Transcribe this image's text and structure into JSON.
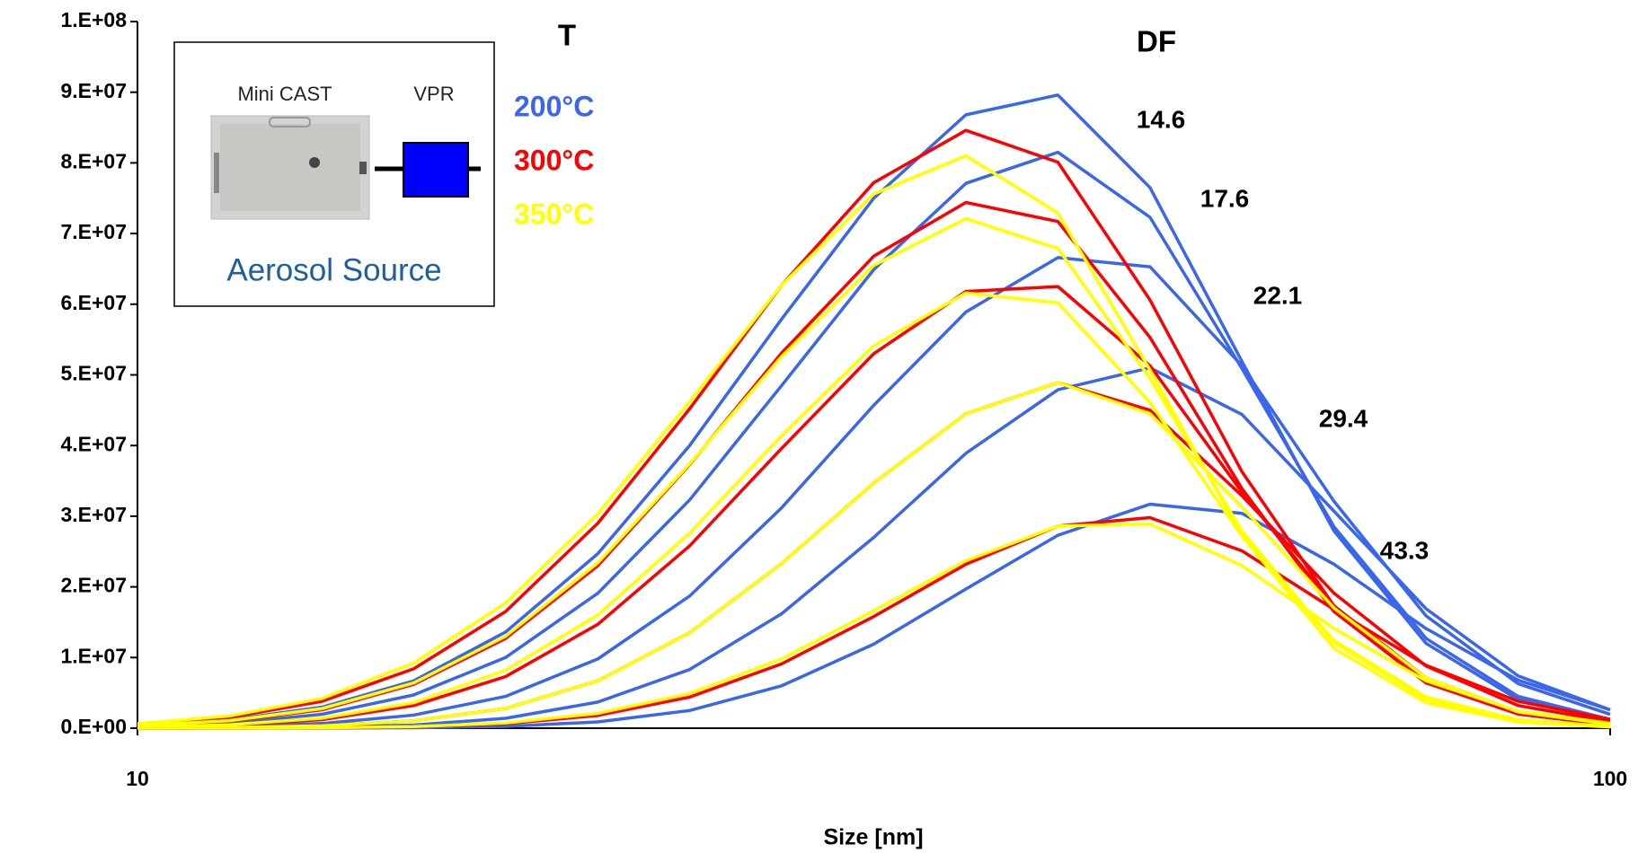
{
  "chart_data": {
    "type": "line",
    "x_label": "Size [nm]",
    "xscale": "log",
    "xlim": [
      10,
      100
    ],
    "xticks": [
      10,
      100
    ],
    "ylim": [
      0,
      100000000
    ],
    "yticks": [
      {
        "value": 0,
        "label": "0.E+00"
      },
      {
        "value": 10000000,
        "label": "1.E+07"
      },
      {
        "value": 20000000,
        "label": "2.E+07"
      },
      {
        "value": 30000000,
        "label": "3.E+07"
      },
      {
        "value": 40000000,
        "label": "4.E+07"
      },
      {
        "value": 50000000,
        "label": "5.E+07"
      },
      {
        "value": 60000000,
        "label": "6.E+07"
      },
      {
        "value": 70000000,
        "label": "7.E+07"
      },
      {
        "value": 80000000,
        "label": "8.E+07"
      },
      {
        "value": 90000000,
        "label": "9.E+07"
      },
      {
        "value": 100000000,
        "label": "1.E+08"
      }
    ],
    "grid": false,
    "legend_title": "T",
    "df_title": "DF",
    "df_labels": [
      14.6,
      17.6,
      22.1,
      29.4,
      43.3
    ],
    "inset": {
      "labels": [
        "Mini CAST",
        "VPR"
      ],
      "caption": "Aerosol Source"
    },
    "x": [
      10,
      11.55,
      13.34,
      15.4,
      17.78,
      20.54,
      23.71,
      27.38,
      31.62,
      36.52,
      42.17,
      48.7,
      56.23,
      64.94,
      74.99,
      86.6,
      100
    ],
    "series": [
      {
        "name": "200°C",
        "color": "#3a66ee",
        "values": [
          410000.0,
          1170000.0,
          2970000.0,
          6700000.0,
          13600000.0,
          24700000.0,
          40000000.0,
          57900000.0,
          75000000.0,
          86800000.0,
          89600000.0,
          76500000.0,
          51900000.0,
          27900000.0,
          12000000.0,
          4050000.0,
          1090000.0
        ]
      },
      {
        "name": "200°C",
        "color": "#3a66ee",
        "values": [
          240000.0,
          730000.0,
          1960000.0,
          4700000.0,
          10000000.0,
          19100000.0,
          32300000.0,
          48500000.0,
          64900000.0,
          77100000.0,
          81500000.0,
          72300000.0,
          50900000.0,
          28500000.0,
          12700000.0,
          4500000.0,
          1250000.0
        ]
      },
      {
        "name": "200°C",
        "color": "#3a66ee",
        "values": [
          57000.0,
          210000.0,
          660000.0,
          1850000.0,
          4500000.0,
          9800000.0,
          18700000.0,
          31200000.0,
          45700000.0,
          58900000.0,
          66600000.0,
          65300000.0,
          51300000.0,
          32100000.0,
          15900000.0,
          6300000.0,
          1960000.0
        ]
      },
      {
        "name": "200°C",
        "color": "#3a66ee",
        "values": [
          6500.0,
          31000.0,
          130000.0,
          450000.0,
          1400000.0,
          3700000.0,
          8300000.0,
          16200000.0,
          27000000.0,
          38900000.0,
          47900000.0,
          51000000.0,
          44400000.0,
          30700000.0,
          16900000.0,
          7400000.0,
          2600000.0
        ]
      },
      {
        "name": "200°C",
        "color": "#3a66ee",
        "values": [
          300.0,
          2200.0,
          13000.0,
          64000.0,
          260000.0,
          890000.0,
          2500000.0,
          6000000.0,
          11900000.0,
          19700000.0,
          27300000.0,
          31700000.0,
          30400000.0,
          23200000.0,
          14100000.0,
          6800000.0,
          2600000.0
        ]
      },
      {
        "name": "300°C",
        "color": "#ff0000",
        "values": [
          540000.0,
          1530000.0,
          3800000.0,
          8400000.0,
          16500000.0,
          29000000.0,
          45200000.0,
          62700000.0,
          77200000.0,
          84600000.0,
          80100000.0,
          60600000.0,
          36300000.0,
          17300000.0,
          6600000.0,
          2000000.0,
          470000.0
        ]
      },
      {
        "name": "300°C",
        "color": "#ff0000",
        "values": [
          340000.0,
          1000000.0,
          2600000.0,
          6200000.0,
          12700000.0,
          23000000.0,
          37300000.0,
          53100000.0,
          66800000.0,
          74400000.0,
          71700000.0,
          55300000.0,
          33900000.0,
          16500000.0,
          6400000.0,
          2000000.0,
          480000.0
        ]
      },
      {
        "name": "300°C",
        "color": "#ff0000",
        "values": [
          110000.0,
          400000.0,
          1200000.0,
          3200000.0,
          7300000.0,
          14700000.0,
          25800000.0,
          39600000.0,
          53000000.0,
          61800000.0,
          62500000.0,
          51300000.0,
          33400000.0,
          17300000.0,
          7100000.0,
          2300000.0,
          600000.0
        ]
      },
      {
        "name": "300°C",
        "color": "#ff0000",
        "values": [
          21000.0,
          90000.0,
          330000.0,
          1040000.0,
          2800000.0,
          6700000.0,
          13500000.0,
          23300000.0,
          34700000.0,
          44500000.0,
          48900000.0,
          45000000.0,
          32900000.0,
          19100000.0,
          8800000.0,
          3200000.0,
          930000.0
        ]
      },
      {
        "name": "300°C",
        "color": "#ff0000",
        "values": [
          1700.0,
          10000.0,
          46000.0,
          190000.0,
          630000.0,
          1800000.0,
          4400000.0,
          9100000.0,
          15800000.0,
          23200000.0,
          28600000.0,
          29800000.0,
          25100000.0,
          16800000.0,
          8900000.0,
          3800000.0,
          1260000.0
        ]
      },
      {
        "name": "350°C",
        "color": "#ffff00",
        "values": [
          630000.0,
          1740000.0,
          4200000.0,
          9200000.0,
          17700000.0,
          30300000.0,
          46200000.0,
          62700000.0,
          75600000.0,
          81000000.0,
          72900000.0,
          50700000.0,
          27200000.0,
          11300000.0,
          3600000.0,
          880000.0,
          170000.0
        ]
      },
      {
        "name": "350°C",
        "color": "#ffff00",
        "values": [
          360000.0,
          1070000.0,
          2760000.0,
          6400000.0,
          13000000.0,
          23400000.0,
          37400000.0,
          52600000.0,
          65500000.0,
          72100000.0,
          67900000.0,
          49500000.0,
          27900000.0,
          12100000.0,
          4100000.0,
          1050000.0,
          210000.0
        ]
      },
      {
        "name": "350°C",
        "color": "#ffff00",
        "values": [
          140000.0,
          480000.0,
          1410000.0,
          3600000.0,
          8200000.0,
          16000000.0,
          27600000.0,
          41400000.0,
          54100000.0,
          61600000.0,
          60200000.0,
          46100000.0,
          27200000.0,
          12400000.0,
          4400000.0,
          1180000.0,
          250000.0
        ]
      },
      {
        "name": "350°C",
        "color": "#ffff00",
        "values": [
          21000.0,
          90000.0,
          330000.0,
          1040000.0,
          2800000.0,
          6700000.0,
          13500000.0,
          23300000.0,
          34700000.0,
          44500000.0,
          48900000.0,
          44500000.0,
          31300000.0,
          17000000.0,
          7100000.0,
          2300000.0,
          570000.0
        ]
      },
      {
        "name": "350°C",
        "color": "#ffff00",
        "values": [
          2200.0,
          12000.0,
          56000.0,
          220000.0,
          740000.0,
          2100000.0,
          4900000.0,
          9800000.0,
          16600000.0,
          23700000.0,
          28600000.0,
          28900000.0,
          23000000.0,
          14100000.0,
          6700000.0,
          2400000.0,
          680000.0
        ]
      }
    ]
  }
}
